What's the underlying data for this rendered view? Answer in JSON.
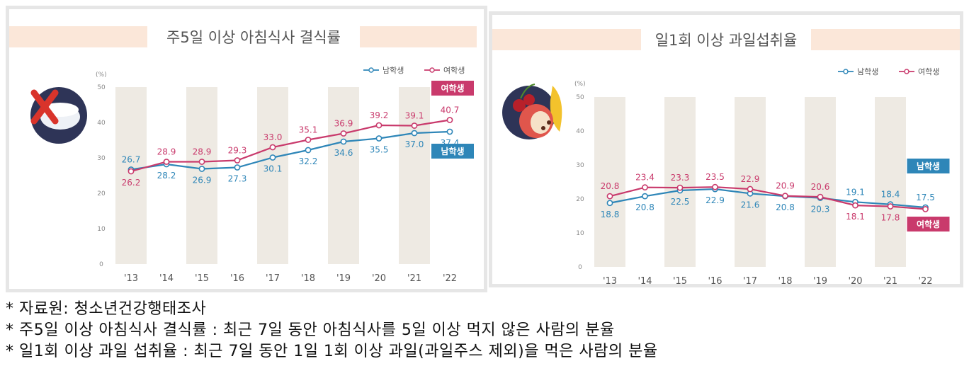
{
  "colors": {
    "male": "#2e86b8",
    "female": "#c93a6c",
    "band": "#eeeae3",
    "title_bar": "#fbe7d9"
  },
  "chart_data": [
    {
      "type": "line",
      "title": "주5일 이상 아침식사 결식률",
      "unit": "(%)",
      "x": [
        "'13",
        "'14",
        "'15",
        "'16",
        "'17",
        "'18",
        "'19",
        "'20",
        "'21",
        "'22"
      ],
      "ylim": [
        0,
        50
      ],
      "yticks": [
        0,
        10,
        20,
        30,
        40,
        50
      ],
      "series": [
        {
          "name": "남학생",
          "values": [
            26.7,
            28.2,
            26.9,
            27.3,
            30.1,
            32.2,
            34.6,
            35.5,
            37.0,
            37.4
          ]
        },
        {
          "name": "여학생",
          "values": [
            26.2,
            28.9,
            28.9,
            29.3,
            33.0,
            35.1,
            36.9,
            39.2,
            39.1,
            40.7
          ]
        }
      ],
      "end_tags": {
        "top": "여학생",
        "bottom": "남학생"
      }
    },
    {
      "type": "line",
      "title": "일1회 이상 과일섭취율",
      "unit": "(%)",
      "x": [
        "'13",
        "'14",
        "'15",
        "'16",
        "'17",
        "'18",
        "'19",
        "'20",
        "'21",
        "'22"
      ],
      "ylim": [
        0,
        50
      ],
      "yticks": [
        0,
        10,
        20,
        30,
        40,
        50
      ],
      "series": [
        {
          "name": "남학생",
          "values": [
            18.8,
            20.8,
            22.5,
            22.9,
            21.6,
            20.8,
            20.3,
            19.1,
            18.4,
            17.5
          ]
        },
        {
          "name": "여학생",
          "values": [
            20.8,
            23.4,
            23.3,
            23.5,
            22.9,
            20.9,
            20.6,
            18.1,
            17.8,
            17.0
          ]
        }
      ],
      "end_tags": {
        "top": "남학생",
        "bottom": "여학생"
      }
    }
  ],
  "notes": [
    "* 자료원: 청소년건강행태조사",
    "* 주5일 이상 아침식사 결식률 : 최근 7일 동안 아침식사를 5일 이상 먹지 않은 사람의 분율",
    "* 일1회 이상 과일 섭취율 : 최근 7일 동안 1일 1회 이상 과일(과일주스 제외)을 먹은 사람의 분율"
  ]
}
